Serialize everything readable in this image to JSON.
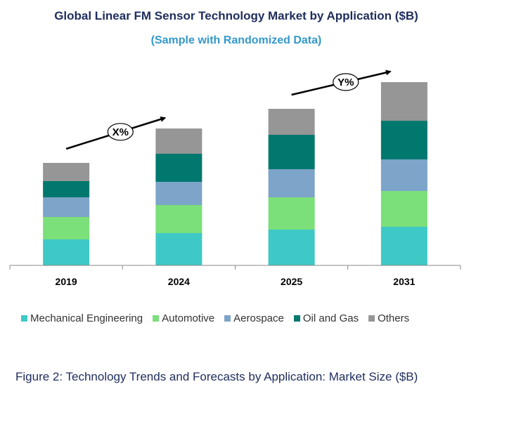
{
  "chart_data": {
    "type": "bar",
    "stacked": true,
    "title": "Global Linear FM Sensor Technology Market by Application ($B)",
    "subtitle": "(Sample with Randomized Data)",
    "categories": [
      "2019",
      "2024",
      "2025",
      "2031"
    ],
    "series": [
      {
        "name": "Mechanical Engineering",
        "color": "#3ec9c6",
        "values": [
          37,
          46,
          51,
          55
        ]
      },
      {
        "name": "Automotive",
        "color": "#7bdf7a",
        "values": [
          32,
          40,
          46,
          51
        ]
      },
      {
        "name": "Aerospace",
        "color": "#7da4c9",
        "values": [
          28,
          33,
          40,
          45
        ]
      },
      {
        "name": "Oil and Gas",
        "color": "#00786e",
        "values": [
          23,
          40,
          49,
          55
        ]
      },
      {
        "name": "Others",
        "color": "#969696",
        "values": [
          26,
          36,
          37,
          55
        ]
      }
    ],
    "ylim": [
      0,
      270
    ],
    "annotations": [
      {
        "label": "X%",
        "from": "2019",
        "to": "2024"
      },
      {
        "label": "Y%",
        "from": "2025",
        "to": "2031"
      }
    ],
    "legend_position": "bottom",
    "grid": false
  },
  "caption": "Figure 2: Technology Trends and Forecasts by Application: Market Size ($B)"
}
